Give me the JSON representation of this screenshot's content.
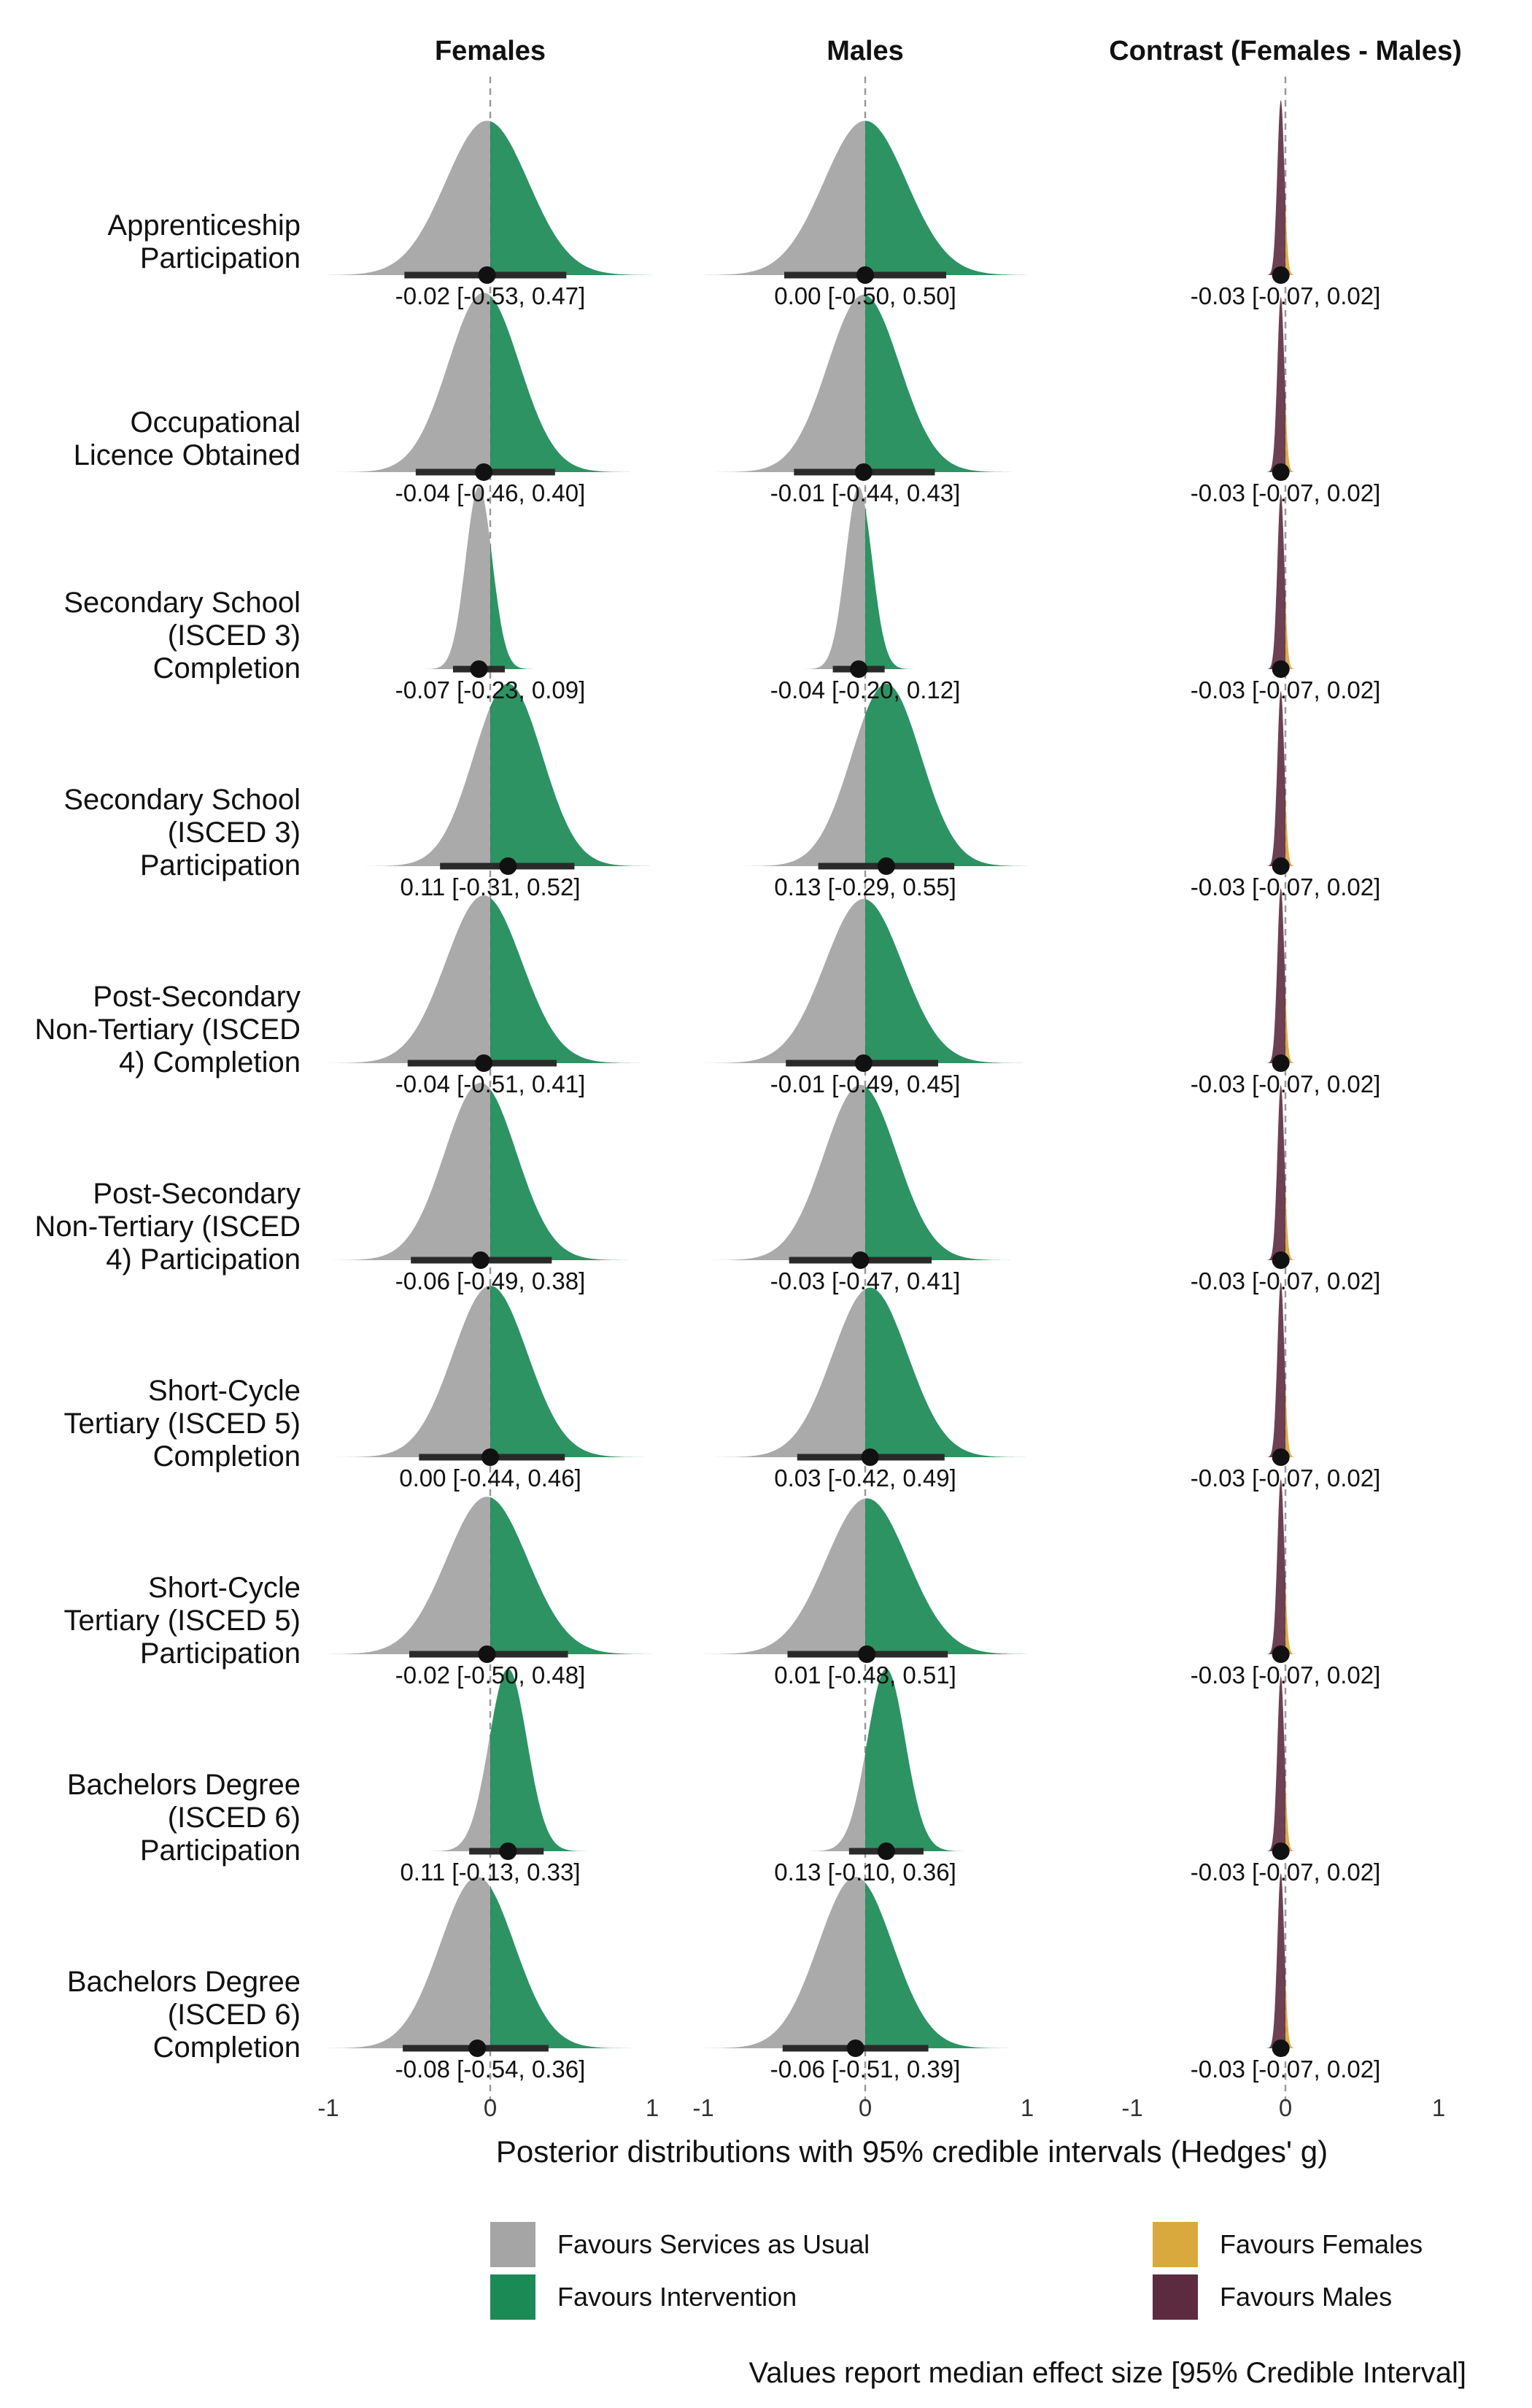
{
  "chart_data": {
    "type": "ridgeline-density",
    "panels": [
      "Females",
      "Males",
      "Contrast (Females - Males)"
    ],
    "xlabel": "Posterior distributions with 95% credible intervals (Hedges' g)",
    "xlim": [
      -1,
      1
    ],
    "xticks": [
      "-1",
      "0",
      "1"
    ],
    "outcomes": [
      {
        "label": [
          "Apprenticeship",
          "Participation"
        ],
        "females": {
          "median": -0.02,
          "lo": -0.53,
          "hi": 0.47,
          "text": "-0.02 [-0.53, 0.47]"
        },
        "males": {
          "median": 0.0,
          "lo": -0.5,
          "hi": 0.5,
          "text": "0.00 [-0.50, 0.50]"
        },
        "contrast": {
          "median": -0.03,
          "lo": -0.07,
          "hi": 0.02,
          "text": "-0.03 [-0.07, 0.02]"
        }
      },
      {
        "label": [
          "Occupational",
          "Licence Obtained"
        ],
        "females": {
          "median": -0.04,
          "lo": -0.46,
          "hi": 0.4,
          "text": "-0.04 [-0.46, 0.40]"
        },
        "males": {
          "median": -0.01,
          "lo": -0.44,
          "hi": 0.43,
          "text": "-0.01 [-0.44, 0.43]"
        },
        "contrast": {
          "median": -0.03,
          "lo": -0.07,
          "hi": 0.02,
          "text": "-0.03 [-0.07, 0.02]"
        }
      },
      {
        "label": [
          "Secondary School",
          "(ISCED 3)",
          "Completion"
        ],
        "females": {
          "median": -0.07,
          "lo": -0.23,
          "hi": 0.09,
          "text": "-0.07 [-0.23, 0.09]"
        },
        "males": {
          "median": -0.04,
          "lo": -0.2,
          "hi": 0.12,
          "text": "-0.04 [-0.20, 0.12]"
        },
        "contrast": {
          "median": -0.03,
          "lo": -0.07,
          "hi": 0.02,
          "text": "-0.03 [-0.07, 0.02]"
        }
      },
      {
        "label": [
          "Secondary School",
          "(ISCED 3)",
          "Participation"
        ],
        "females": {
          "median": 0.11,
          "lo": -0.31,
          "hi": 0.52,
          "text": "0.11 [-0.31, 0.52]"
        },
        "males": {
          "median": 0.13,
          "lo": -0.29,
          "hi": 0.55,
          "text": "0.13 [-0.29, 0.55]"
        },
        "contrast": {
          "median": -0.03,
          "lo": -0.07,
          "hi": 0.02,
          "text": "-0.03 [-0.07, 0.02]"
        }
      },
      {
        "label": [
          "Post-Secondary",
          "Non-Tertiary (ISCED",
          "4) Completion"
        ],
        "females": {
          "median": -0.04,
          "lo": -0.51,
          "hi": 0.41,
          "text": "-0.04 [-0.51, 0.41]"
        },
        "males": {
          "median": -0.01,
          "lo": -0.49,
          "hi": 0.45,
          "text": "-0.01 [-0.49, 0.45]"
        },
        "contrast": {
          "median": -0.03,
          "lo": -0.07,
          "hi": 0.02,
          "text": "-0.03 [-0.07, 0.02]"
        }
      },
      {
        "label": [
          "Post-Secondary",
          "Non-Tertiary (ISCED",
          "4) Participation"
        ],
        "females": {
          "median": -0.06,
          "lo": -0.49,
          "hi": 0.38,
          "text": "-0.06 [-0.49, 0.38]"
        },
        "males": {
          "median": -0.03,
          "lo": -0.47,
          "hi": 0.41,
          "text": "-0.03 [-0.47, 0.41]"
        },
        "contrast": {
          "median": -0.03,
          "lo": -0.07,
          "hi": 0.02,
          "text": "-0.03 [-0.07, 0.02]"
        }
      },
      {
        "label": [
          "Short-Cycle",
          "Tertiary (ISCED 5)",
          "Completion"
        ],
        "females": {
          "median": 0.0,
          "lo": -0.44,
          "hi": 0.46,
          "text": "0.00 [-0.44, 0.46]"
        },
        "males": {
          "median": 0.03,
          "lo": -0.42,
          "hi": 0.49,
          "text": "0.03 [-0.42, 0.49]"
        },
        "contrast": {
          "median": -0.03,
          "lo": -0.07,
          "hi": 0.02,
          "text": "-0.03 [-0.07, 0.02]"
        }
      },
      {
        "label": [
          "Short-Cycle",
          "Tertiary (ISCED 5)",
          "Participation"
        ],
        "females": {
          "median": -0.02,
          "lo": -0.5,
          "hi": 0.48,
          "text": "-0.02 [-0.50, 0.48]"
        },
        "males": {
          "median": 0.01,
          "lo": -0.48,
          "hi": 0.51,
          "text": "0.01 [-0.48, 0.51]"
        },
        "contrast": {
          "median": -0.03,
          "lo": -0.07,
          "hi": 0.02,
          "text": "-0.03 [-0.07, 0.02]"
        }
      },
      {
        "label": [
          "Bachelors Degree",
          "(ISCED 6)",
          "Participation"
        ],
        "females": {
          "median": 0.11,
          "lo": -0.13,
          "hi": 0.33,
          "text": "0.11 [-0.13, 0.33]"
        },
        "males": {
          "median": 0.13,
          "lo": -0.1,
          "hi": 0.36,
          "text": "0.13 [-0.10, 0.36]"
        },
        "contrast": {
          "median": -0.03,
          "lo": -0.07,
          "hi": 0.02,
          "text": "-0.03 [-0.07, 0.02]"
        }
      },
      {
        "label": [
          "Bachelors Degree",
          "(ISCED 6)",
          "Completion"
        ],
        "females": {
          "median": -0.08,
          "lo": -0.54,
          "hi": 0.36,
          "text": "-0.08 [-0.54, 0.36]"
        },
        "males": {
          "median": -0.06,
          "lo": -0.51,
          "hi": 0.39,
          "text": "-0.06 [-0.51, 0.39]"
        },
        "contrast": {
          "median": -0.03,
          "lo": -0.07,
          "hi": 0.02,
          "text": "-0.03 [-0.07, 0.02]"
        }
      }
    ],
    "colors": {
      "services_as_usual": "#a6a5a6",
      "intervention": "#1b8a55",
      "favours_females": "#d9a93e",
      "favours_males": "#5d2b40",
      "interval": "#2a2a2a",
      "zero_line": "#9a9a9a"
    },
    "legend": {
      "placement": "bottom",
      "items": [
        {
          "label": "Favours Services as Usual",
          "color": "#a6a5a6"
        },
        {
          "label": "Favours Intervention",
          "color": "#1b8a55"
        },
        {
          "label": "Favours Females",
          "color": "#d9a93e"
        },
        {
          "label": "Favours Males",
          "color": "#5d2b40"
        }
      ]
    },
    "note": "Values report median effect size [95% Credible Interval]"
  }
}
